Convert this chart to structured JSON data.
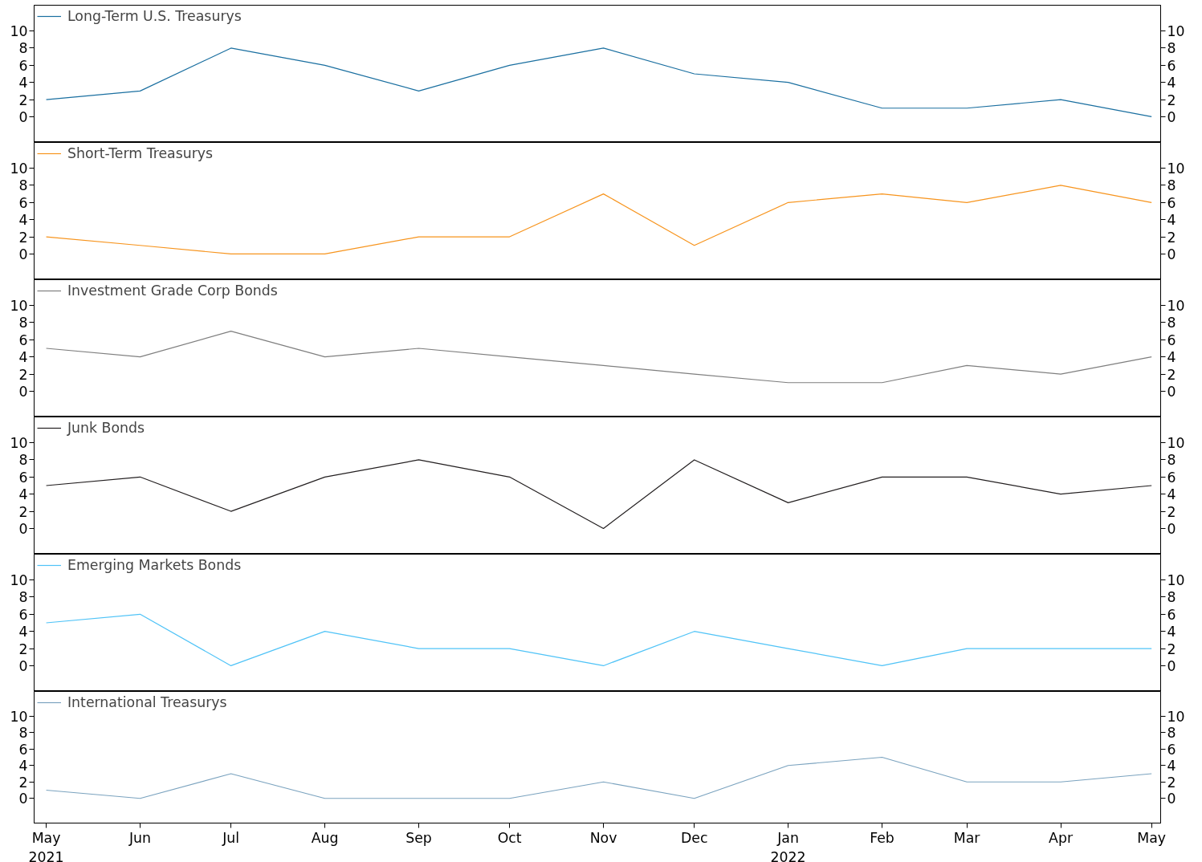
{
  "chart_data": [
    {
      "type": "line",
      "x": [
        "2021-05",
        "2021-06",
        "2021-07",
        "2021-08",
        "2021-09",
        "2021-10",
        "2021-11",
        "2021-12",
        "2022-01",
        "2022-02",
        "2022-03",
        "2022-04",
        "2022-05"
      ],
      "series": [
        {
          "name": "Long-Term U.S. Treasurys",
          "color": "#1a6fa0",
          "values": [
            2,
            3,
            8,
            6,
            3,
            6,
            8,
            5,
            4,
            1,
            1,
            2,
            0
          ]
        }
      ],
      "xlim": [
        "2021-04-27",
        "2022-05-04"
      ],
      "ylim": [
        -3,
        13
      ],
      "yticks": [
        0,
        2,
        4,
        6,
        8,
        10
      ],
      "y2lim": [
        -3,
        13
      ],
      "y2ticks": [
        0,
        2,
        4,
        6,
        8,
        10
      ],
      "tick_labels": "y",
      "legend": "top left",
      "grid": false
    },
    {
      "type": "line",
      "x": [
        "2021-05",
        "2021-06",
        "2021-07",
        "2021-08",
        "2021-09",
        "2021-10",
        "2021-11",
        "2021-12",
        "2022-01",
        "2022-02",
        "2022-03",
        "2022-04",
        "2022-05"
      ],
      "series": [
        {
          "name": "Short-Term Treasurys",
          "color": "#f7941d",
          "values": [
            2,
            1,
            0,
            0,
            2,
            2,
            7,
            1,
            6,
            7,
            6,
            8,
            6
          ]
        }
      ],
      "xlim": [
        "2021-04-27",
        "2022-05-04"
      ],
      "ylim": [
        -3,
        13
      ],
      "yticks": [
        0,
        2,
        4,
        6,
        8,
        10
      ],
      "y2lim": [
        -3,
        13
      ],
      "y2ticks": [
        0,
        2,
        4,
        6,
        8,
        10
      ],
      "tick_labels": "y",
      "legend": "top left",
      "grid": false
    },
    {
      "type": "line",
      "x": [
        "2021-05",
        "2021-06",
        "2021-07",
        "2021-08",
        "2021-09",
        "2021-10",
        "2021-11",
        "2021-12",
        "2022-01",
        "2022-02",
        "2022-03",
        "2022-04",
        "2022-05"
      ],
      "series": [
        {
          "name": "Investment Grade Corp Bonds",
          "color": "#7f7f7f",
          "values": [
            5,
            4,
            7,
            4,
            5,
            4,
            3,
            2,
            1,
            1,
            3,
            2,
            4
          ]
        }
      ],
      "xlim": [
        "2021-04-27",
        "2022-05-04"
      ],
      "ylim": [
        -3,
        13
      ],
      "yticks": [
        0,
        2,
        4,
        6,
        8,
        10
      ],
      "y2lim": [
        -3,
        13
      ],
      "y2ticks": [
        0,
        2,
        4,
        6,
        8,
        10
      ],
      "tick_labels": "y",
      "legend": "top left",
      "grid": false
    },
    {
      "type": "line",
      "x": [
        "2021-05",
        "2021-06",
        "2021-07",
        "2021-08",
        "2021-09",
        "2021-10",
        "2021-11",
        "2021-12",
        "2022-01",
        "2022-02",
        "2022-03",
        "2022-04",
        "2022-05"
      ],
      "series": [
        {
          "name": "Junk Bonds",
          "color": "#231f20",
          "values": [
            5,
            6,
            2,
            6,
            8,
            6,
            0,
            8,
            3,
            6,
            6,
            4,
            5
          ]
        }
      ],
      "xlim": [
        "2021-04-27",
        "2022-05-04"
      ],
      "ylim": [
        -3,
        13
      ],
      "yticks": [
        0,
        2,
        4,
        6,
        8,
        10
      ],
      "y2lim": [
        -3,
        13
      ],
      "y2ticks": [
        0,
        2,
        4,
        6,
        8,
        10
      ],
      "tick_labels": "y",
      "legend": "top left",
      "grid": false
    },
    {
      "type": "line",
      "x": [
        "2021-05",
        "2021-06",
        "2021-07",
        "2021-08",
        "2021-09",
        "2021-10",
        "2021-11",
        "2021-12",
        "2022-01",
        "2022-02",
        "2022-03",
        "2022-04",
        "2022-05"
      ],
      "series": [
        {
          "name": "Emerging Markets Bonds",
          "color": "#4fc3f7",
          "values": [
            5,
            6,
            0,
            4,
            2,
            2,
            0,
            4,
            2,
            0,
            2,
            2,
            2
          ]
        }
      ],
      "xlim": [
        "2021-04-27",
        "2022-05-04"
      ],
      "ylim": [
        -3,
        13
      ],
      "yticks": [
        0,
        2,
        4,
        6,
        8,
        10
      ],
      "y2lim": [
        -3,
        13
      ],
      "y2ticks": [
        0,
        2,
        4,
        6,
        8,
        10
      ],
      "tick_labels": "y",
      "legend": "top left",
      "grid": false
    },
    {
      "type": "line",
      "x": [
        "2021-05",
        "2021-06",
        "2021-07",
        "2021-08",
        "2021-09",
        "2021-10",
        "2021-11",
        "2021-12",
        "2022-01",
        "2022-02",
        "2022-03",
        "2022-04",
        "2022-05"
      ],
      "series": [
        {
          "name": "International Treasurys",
          "color": "#7ba3bf",
          "values": [
            1,
            0,
            3,
            0,
            0,
            0,
            2,
            0,
            4,
            5,
            2,
            2,
            3
          ]
        }
      ],
      "xlim": [
        "2021-04-27",
        "2022-05-04"
      ],
      "ylim": [
        -3,
        13
      ],
      "yticks": [
        0,
        2,
        4,
        6,
        8,
        10
      ],
      "y2lim": [
        -3,
        13
      ],
      "y2ticks": [
        0,
        2,
        4,
        6,
        8,
        10
      ],
      "xticks": [
        {
          "value": "2021-05",
          "label": "May\n2021"
        },
        {
          "value": "2021-06",
          "label": "Jun"
        },
        {
          "value": "2021-07",
          "label": "Jul"
        },
        {
          "value": "2021-08",
          "label": "Aug"
        },
        {
          "value": "2021-09",
          "label": "Sep"
        },
        {
          "value": "2021-10",
          "label": "Oct"
        },
        {
          "value": "2021-11",
          "label": "Nov"
        },
        {
          "value": "2021-12",
          "label": "Dec"
        },
        {
          "value": "2022-01",
          "label": "Jan\n2022"
        },
        {
          "value": "2022-02",
          "label": "Feb"
        },
        {
          "value": "2022-03",
          "label": "Mar"
        },
        {
          "value": "2022-04",
          "label": "Apr"
        },
        {
          "value": "2022-05",
          "label": "May"
        }
      ],
      "legend": "top left",
      "grid": false
    }
  ]
}
